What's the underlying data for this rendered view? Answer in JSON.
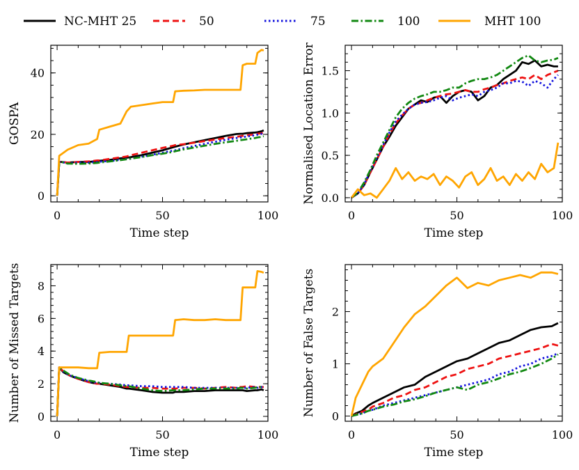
{
  "legend": [
    {
      "label": "NC-MHT 25",
      "color": "#000000",
      "dash": "solid"
    },
    {
      "label": "50",
      "color": "#ee1111",
      "dash": "dashed"
    },
    {
      "label": "75",
      "color": "#1111dd",
      "dash": "dotted"
    },
    {
      "label": "100",
      "color": "#118811",
      "dash": "dashdot"
    },
    {
      "label": "MHT 100",
      "color": "#ffa500",
      "dash": "solid"
    }
  ],
  "chart_data": [
    {
      "type": "line",
      "xlabel": "Time step",
      "ylabel": "GOSPA",
      "xlim": [
        -3,
        100
      ],
      "ylim": [
        -2,
        49
      ],
      "xticks": [
        0,
        50,
        100
      ],
      "yticks": [
        0,
        20,
        40
      ],
      "yticklabels": [
        "0",
        "20",
        "40"
      ],
      "x": [
        0,
        1,
        2,
        5,
        10,
        15,
        19,
        20,
        25,
        30,
        33,
        35,
        40,
        45,
        50,
        55,
        56,
        60,
        65,
        70,
        75,
        80,
        85,
        87,
        88,
        90,
        94,
        95,
        97,
        98
      ],
      "series": [
        {
          "name": "NC-MHT 25",
          "values": [
            0,
            11,
            11,
            10.8,
            11,
            11,
            11.3,
            11.4,
            11.7,
            12.2,
            12.4,
            12.6,
            13.2,
            14.0,
            14.8,
            15.8,
            16.0,
            16.7,
            17.4,
            18.1,
            18.8,
            19.5,
            20.1,
            20.2,
            20.2,
            20.4,
            20.6,
            20.7,
            21,
            21.3
          ]
        },
        {
          "name": "50",
          "values": [
            0,
            11,
            11,
            10.8,
            11,
            11.2,
            11.5,
            11.5,
            12,
            12.5,
            12.8,
            13.2,
            14,
            14.8,
            15.6,
            16.3,
            16.5,
            16.8,
            17.3,
            17.8,
            18.3,
            18.8,
            19.2,
            19.4,
            19.5,
            19.7,
            20,
            20.2,
            20.4,
            20.6
          ]
        },
        {
          "name": "75",
          "values": [
            0,
            11,
            11,
            10.5,
            10.8,
            10.8,
            11,
            11.1,
            11.3,
            11.7,
            12,
            12.1,
            12.7,
            13.3,
            14,
            14.7,
            14.8,
            15.5,
            16.2,
            16.9,
            17.6,
            18.2,
            18.8,
            19,
            19.1,
            19.3,
            19.7,
            19.9,
            20.2,
            20.5
          ]
        },
        {
          "name": "100",
          "values": [
            0,
            11,
            11,
            10.5,
            10.4,
            10.5,
            10.7,
            10.8,
            11.2,
            11.6,
            11.9,
            12.1,
            12.6,
            13.2,
            13.7,
            14.3,
            14.5,
            15.1,
            15.7,
            16.3,
            16.9,
            17.4,
            17.9,
            18.1,
            18.2,
            18.4,
            18.8,
            19,
            19.2,
            19.4
          ]
        },
        {
          "name": "MHT 100",
          "values": [
            0,
            13,
            13.5,
            15,
            16.5,
            17,
            18.5,
            21.5,
            22.5,
            23.5,
            27.5,
            29,
            29.5,
            30,
            30.5,
            30.5,
            34,
            34.2,
            34.3,
            34.5,
            34.5,
            34.5,
            34.5,
            34.5,
            42.5,
            43,
            43,
            46.5,
            47.5,
            47.3
          ]
        }
      ]
    },
    {
      "type": "line",
      "xlabel": "Time step",
      "ylabel": "Normalised Location Error",
      "xlim": [
        -3,
        100
      ],
      "ylim": [
        -0.05,
        1.8
      ],
      "xticks": [
        0,
        50,
        100
      ],
      "yticks": [
        0,
        0.5,
        1,
        1.5
      ],
      "yticklabels": [
        "0.0",
        "0.5",
        "1.0",
        "1.5"
      ],
      "x": [
        0,
        3,
        6,
        9,
        12,
        15,
        18,
        21,
        24,
        27,
        30,
        33,
        36,
        39,
        42,
        45,
        48,
        51,
        54,
        57,
        60,
        63,
        66,
        69,
        72,
        75,
        78,
        81,
        84,
        87,
        90,
        93,
        96,
        98
      ],
      "series": [
        {
          "name": "NC-MHT 25",
          "values": [
            0,
            0.05,
            0.15,
            0.3,
            0.45,
            0.6,
            0.72,
            0.85,
            0.95,
            1.05,
            1.1,
            1.15,
            1.13,
            1.18,
            1.2,
            1.12,
            1.2,
            1.25,
            1.27,
            1.25,
            1.15,
            1.2,
            1.3,
            1.33,
            1.4,
            1.45,
            1.5,
            1.6,
            1.58,
            1.62,
            1.55,
            1.57,
            1.55,
            1.55
          ]
        },
        {
          "name": "50",
          "values": [
            0,
            0.05,
            0.15,
            0.3,
            0.45,
            0.6,
            0.75,
            0.88,
            0.97,
            1.05,
            1.1,
            1.12,
            1.15,
            1.18,
            1.2,
            1.22,
            1.23,
            1.25,
            1.27,
            1.25,
            1.25,
            1.28,
            1.3,
            1.33,
            1.35,
            1.38,
            1.4,
            1.42,
            1.4,
            1.45,
            1.4,
            1.45,
            1.48,
            1.5
          ]
        },
        {
          "name": "75",
          "values": [
            0,
            0.05,
            0.16,
            0.32,
            0.47,
            0.62,
            0.77,
            0.9,
            0.98,
            1.05,
            1.1,
            1.12,
            1.13,
            1.15,
            1.18,
            1.2,
            1.15,
            1.18,
            1.2,
            1.22,
            1.2,
            1.25,
            1.27,
            1.3,
            1.35,
            1.35,
            1.38,
            1.37,
            1.32,
            1.38,
            1.35,
            1.3,
            1.4,
            1.45
          ]
        },
        {
          "name": "100",
          "values": [
            0,
            0.06,
            0.18,
            0.33,
            0.5,
            0.65,
            0.8,
            0.95,
            1.05,
            1.12,
            1.17,
            1.2,
            1.22,
            1.25,
            1.25,
            1.27,
            1.3,
            1.3,
            1.35,
            1.38,
            1.4,
            1.4,
            1.42,
            1.45,
            1.5,
            1.55,
            1.6,
            1.65,
            1.68,
            1.62,
            1.6,
            1.62,
            1.63,
            1.65
          ]
        },
        {
          "name": "MHT 100",
          "values": [
            0,
            0.1,
            0.03,
            0.05,
            0.0,
            0.1,
            0.2,
            0.35,
            0.22,
            0.3,
            0.2,
            0.25,
            0.22,
            0.28,
            0.15,
            0.25,
            0.2,
            0.12,
            0.25,
            0.3,
            0.15,
            0.22,
            0.35,
            0.2,
            0.25,
            0.15,
            0.28,
            0.2,
            0.3,
            0.22,
            0.4,
            0.3,
            0.35,
            0.65
          ]
        }
      ]
    },
    {
      "type": "line",
      "xlabel": "Time step",
      "ylabel": "Number of Missed Targets",
      "xlim": [
        -3,
        100
      ],
      "ylim": [
        -0.3,
        9.3
      ],
      "xticks": [
        0,
        50,
        100
      ],
      "yticks": [
        0,
        2,
        4,
        6,
        8
      ],
      "yticklabels": [
        "0",
        "2",
        "4",
        "6",
        "8"
      ],
      "x": [
        0,
        1,
        3,
        6,
        10,
        15,
        19,
        20,
        25,
        30,
        33,
        34,
        40,
        45,
        50,
        55,
        56,
        60,
        65,
        70,
        75,
        80,
        85,
        87,
        88,
        90,
        94,
        95,
        97,
        98
      ],
      "series": [
        {
          "name": "NC-MHT 25",
          "values": [
            0,
            3,
            2.7,
            2.5,
            2.3,
            2.1,
            2.0,
            2.0,
            1.9,
            1.8,
            1.7,
            1.7,
            1.6,
            1.5,
            1.45,
            1.45,
            1.5,
            1.5,
            1.55,
            1.55,
            1.6,
            1.6,
            1.6,
            1.6,
            1.6,
            1.55,
            1.6,
            1.6,
            1.65,
            1.6
          ]
        },
        {
          "name": "50",
          "values": [
            0,
            3,
            2.75,
            2.5,
            2.3,
            2.1,
            2.0,
            2.0,
            1.95,
            1.85,
            1.8,
            1.8,
            1.75,
            1.75,
            1.7,
            1.7,
            1.7,
            1.75,
            1.75,
            1.7,
            1.75,
            1.8,
            1.75,
            1.8,
            1.8,
            1.85,
            1.8,
            1.8,
            1.8,
            1.8
          ]
        },
        {
          "name": "75",
          "values": [
            0,
            3,
            2.75,
            2.5,
            2.35,
            2.15,
            2.05,
            2.05,
            2.0,
            1.95,
            1.9,
            1.9,
            1.85,
            1.85,
            1.8,
            1.8,
            1.8,
            1.8,
            1.75,
            1.75,
            1.75,
            1.75,
            1.75,
            1.75,
            1.75,
            1.75,
            1.8,
            1.75,
            1.8,
            1.8
          ]
        },
        {
          "name": "100",
          "values": [
            0,
            3,
            2.8,
            2.55,
            2.35,
            2.2,
            2.1,
            2.05,
            2.0,
            1.9,
            1.85,
            1.85,
            1.7,
            1.6,
            1.55,
            1.6,
            1.6,
            1.6,
            1.65,
            1.7,
            1.7,
            1.7,
            1.7,
            1.75,
            1.75,
            1.7,
            1.75,
            1.8,
            1.8,
            1.8
          ]
        },
        {
          "name": "MHT 100",
          "values": [
            0,
            3,
            3,
            3,
            3,
            2.95,
            2.95,
            3.9,
            3.95,
            3.95,
            3.95,
            4.95,
            4.95,
            4.95,
            4.95,
            4.95,
            5.9,
            5.95,
            5.9,
            5.9,
            5.95,
            5.9,
            5.9,
            5.9,
            7.9,
            7.9,
            7.9,
            8.9,
            8.85,
            8.8
          ]
        }
      ]
    },
    {
      "type": "line",
      "xlabel": "Time step",
      "ylabel": "Number of False Targets",
      "xlim": [
        -3,
        100
      ],
      "ylim": [
        -0.1,
        2.9
      ],
      "xticks": [
        0,
        50,
        100
      ],
      "yticks": [
        0,
        1,
        2
      ],
      "yticklabels": [
        "0",
        "1",
        "2"
      ],
      "x": [
        0,
        2,
        5,
        8,
        10,
        15,
        20,
        25,
        30,
        35,
        40,
        45,
        50,
        55,
        60,
        65,
        70,
        75,
        80,
        85,
        90,
        95,
        98
      ],
      "series": [
        {
          "name": "NC-MHT 25",
          "values": [
            0,
            0.05,
            0.1,
            0.2,
            0.25,
            0.35,
            0.45,
            0.55,
            0.6,
            0.75,
            0.85,
            0.95,
            1.05,
            1.1,
            1.2,
            1.3,
            1.4,
            1.45,
            1.55,
            1.65,
            1.7,
            1.72,
            1.78
          ]
        },
        {
          "name": "50",
          "values": [
            0,
            0.03,
            0.08,
            0.12,
            0.18,
            0.25,
            0.35,
            0.4,
            0.5,
            0.55,
            0.65,
            0.75,
            0.8,
            0.9,
            0.95,
            1.0,
            1.1,
            1.15,
            1.2,
            1.25,
            1.3,
            1.38,
            1.35
          ]
        },
        {
          "name": "75",
          "values": [
            0,
            0.02,
            0.05,
            0.1,
            0.12,
            0.2,
            0.25,
            0.3,
            0.35,
            0.4,
            0.45,
            0.5,
            0.55,
            0.6,
            0.65,
            0.7,
            0.8,
            0.85,
            0.95,
            1.0,
            1.1,
            1.15,
            1.2
          ]
        },
        {
          "name": "100",
          "values": [
            0,
            0.02,
            0.05,
            0.1,
            0.12,
            0.18,
            0.22,
            0.28,
            0.32,
            0.38,
            0.45,
            0.5,
            0.55,
            0.5,
            0.6,
            0.65,
            0.72,
            0.8,
            0.85,
            0.92,
            1.0,
            1.1,
            1.18
          ]
        },
        {
          "name": "MHT 100",
          "values": [
            0,
            0.35,
            0.6,
            0.85,
            0.95,
            1.1,
            1.4,
            1.7,
            1.95,
            2.1,
            2.3,
            2.5,
            2.65,
            2.45,
            2.55,
            2.5,
            2.6,
            2.65,
            2.7,
            2.65,
            2.75,
            2.75,
            2.72
          ]
        }
      ]
    }
  ]
}
